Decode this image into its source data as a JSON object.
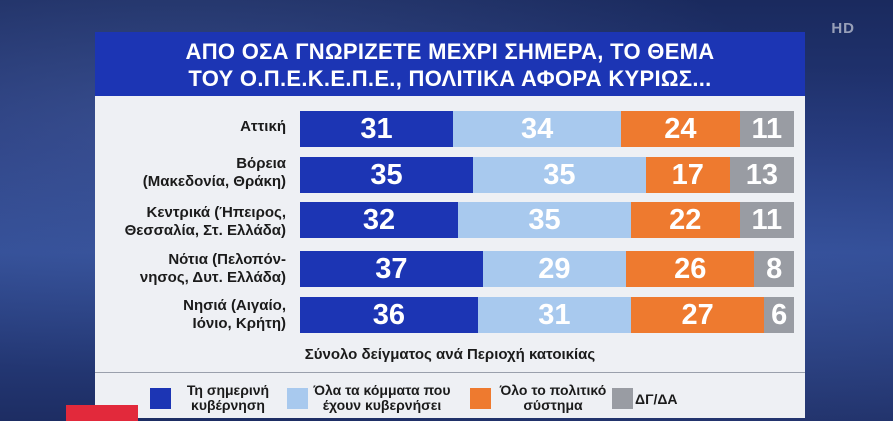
{
  "title": {
    "line1": "ΑΠΟ ΟΣΑ ΓΝΩΡΙΖΕΤΕ ΜΕΧΡΙ ΣΗΜΕΡΑ, ΤΟ ΘΕΜΑ",
    "line2": "ΤΟΥ Ο.Π.Ε.Κ.Ε.Π.Ε., ΠΟΛΙΤΙΚΑ ΑΦΟΡΑ ΚΥΡΙΩΣ..."
  },
  "watermark": "HD",
  "subtitle": "Σύνολο δείγματος ανά Περιοχή κατοικίας",
  "legend": [
    {
      "line1": "Τη σημερινή",
      "line2": "κυβέρνηση",
      "color": "#1c35b4"
    },
    {
      "line1": "Όλα τα κόμματα που",
      "line2": "έχουν κυβερνήσει",
      "color": "#a8c9ee"
    },
    {
      "line1": "Όλο το πολιτικό",
      "line2": "σύστημα",
      "color": "#ee7a2f"
    },
    {
      "line1": "ΔΓ/ΔΑ",
      "line2": "",
      "color": "#999ca3"
    }
  ],
  "rows": [
    {
      "line1": "Αττική",
      "line2": ""
    },
    {
      "line1": "Βόρεια",
      "line2": "(Μακεδονία, Θράκη)"
    },
    {
      "line1": "Κεντρικά (Ήπειρος,",
      "line2": "Θεσσαλία, Στ. Ελλάδα)"
    },
    {
      "line1": "Νότια (Πελοπόν-",
      "line2": "νησος, Δυτ. Ελλάδα)"
    },
    {
      "line1": "Νησιά (Αιγαίο,",
      "line2": "Ιόνιο, Κρήτη)"
    }
  ],
  "chart_data": {
    "type": "bar",
    "orientation": "horizontal",
    "stacked": true,
    "title": "ΑΠΟ ΟΣΑ ΓΝΩΡΙΖΕΤΕ ΜΕΧΡΙ ΣΗΜΕΡΑ, ΤΟ ΘΕΜΑ ΤΟΥ Ο.Π.Ε.Κ.Ε.Π.Ε., ΠΟΛΙΤΙΚΑ ΑΦΟΡΑ ΚΥΡΙΩΣ...",
    "subtitle": "Σύνολο δείγματος ανά Περιοχή κατοικίας",
    "categories": [
      "Αττική",
      "Βόρεια (Μακεδονία, Θράκη)",
      "Κεντρικά (Ήπειρος, Θεσσαλία, Στ. Ελλάδα)",
      "Νότια (Πελοπόννησος, Δυτ. Ελλάδα)",
      "Νησιά (Αιγαίο, Ιόνιο, Κρήτη)"
    ],
    "series": [
      {
        "name": "Τη σημερινή κυβέρνηση",
        "values": [
          31,
          35,
          32,
          37,
          36
        ],
        "color": "#1c35b4",
        "text_color": "#ffffff"
      },
      {
        "name": "Όλα τα κόμματα που έχουν κυβερνήσει",
        "values": [
          34,
          35,
          35,
          29,
          31
        ],
        "color": "#a8c9ee",
        "text_color": "#ffffff"
      },
      {
        "name": "Όλο το πολιτικό σύστημα",
        "values": [
          24,
          17,
          22,
          26,
          27
        ],
        "color": "#ee7a2f",
        "text_color": "#ffffff"
      },
      {
        "name": "ΔΓ/ΔΑ",
        "values": [
          11,
          13,
          11,
          8,
          6
        ],
        "color": "#999ca3",
        "text_color": "#ffffff"
      }
    ],
    "legend_position": "bottom",
    "grid": false
  }
}
